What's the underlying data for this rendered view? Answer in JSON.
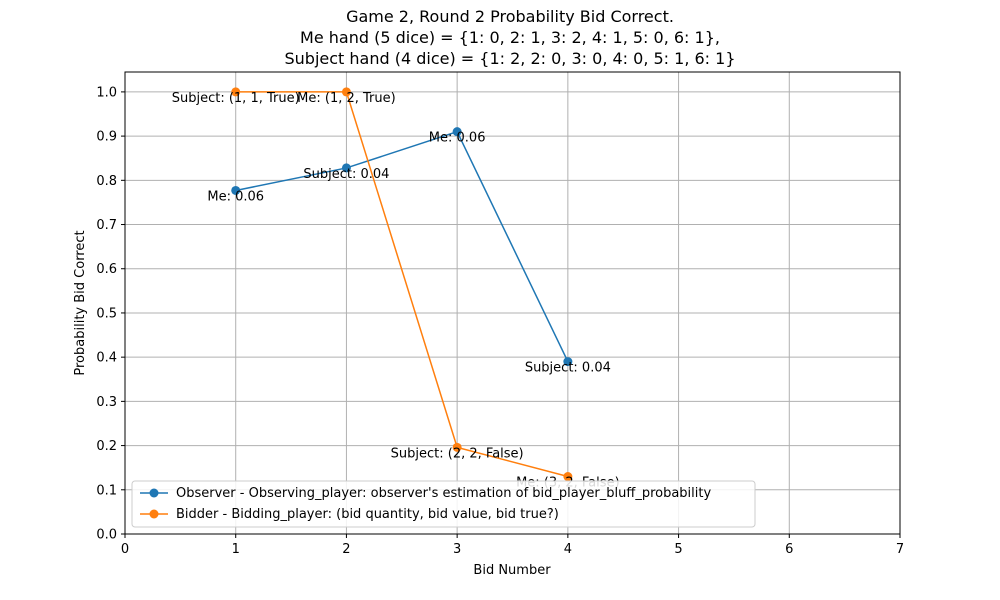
{
  "chart_data": {
    "type": "line",
    "title_lines": [
      "Game 2, Round 2 Probability Bid Correct.",
      "Me hand (5 dice) = {1: 0, 2: 1, 3: 2, 4: 1, 5: 0, 6: 1},",
      "Subject hand (4 dice) = {1: 2, 2: 0, 3: 0, 4: 0, 5: 1, 6: 1}"
    ],
    "xlabel": "Bid Number",
    "ylabel": "Probability Bid Correct",
    "xlim": [
      0,
      7
    ],
    "ylim": [
      0,
      1.045
    ],
    "x_ticks": [
      "0",
      "1",
      "2",
      "3",
      "4",
      "5",
      "6",
      "7"
    ],
    "y_ticks": [
      "0.0",
      "0.1",
      "0.2",
      "0.3",
      "0.4",
      "0.5",
      "0.6",
      "0.7",
      "0.8",
      "0.9",
      "1.0"
    ],
    "grid": true,
    "legend_position": "lower-left",
    "series": [
      {
        "name": "Observer - Observing_player: observer's estimation of bid_player_bluff_probability",
        "color": "#1f77b4",
        "x": [
          1,
          2,
          3,
          4
        ],
        "y": [
          0.777,
          0.828,
          0.91,
          0.39
        ],
        "labels": [
          "Me: 0.06",
          "Subject: 0.04",
          "Me: 0.06",
          "Subject: 0.04"
        ]
      },
      {
        "name": "Bidder -  Bidding_player: (bid quantity, bid value, bid true?)",
        "color": "#ff7f0e",
        "x": [
          1,
          2,
          3,
          4
        ],
        "y": [
          1.0,
          1.0,
          0.196,
          0.13
        ],
        "labels": [
          "Subject: (1, 1, True)",
          "Me: (1, 2, True)",
          "Subject: (2, 2, False)",
          "Me: (3, 2, False)"
        ]
      }
    ]
  }
}
